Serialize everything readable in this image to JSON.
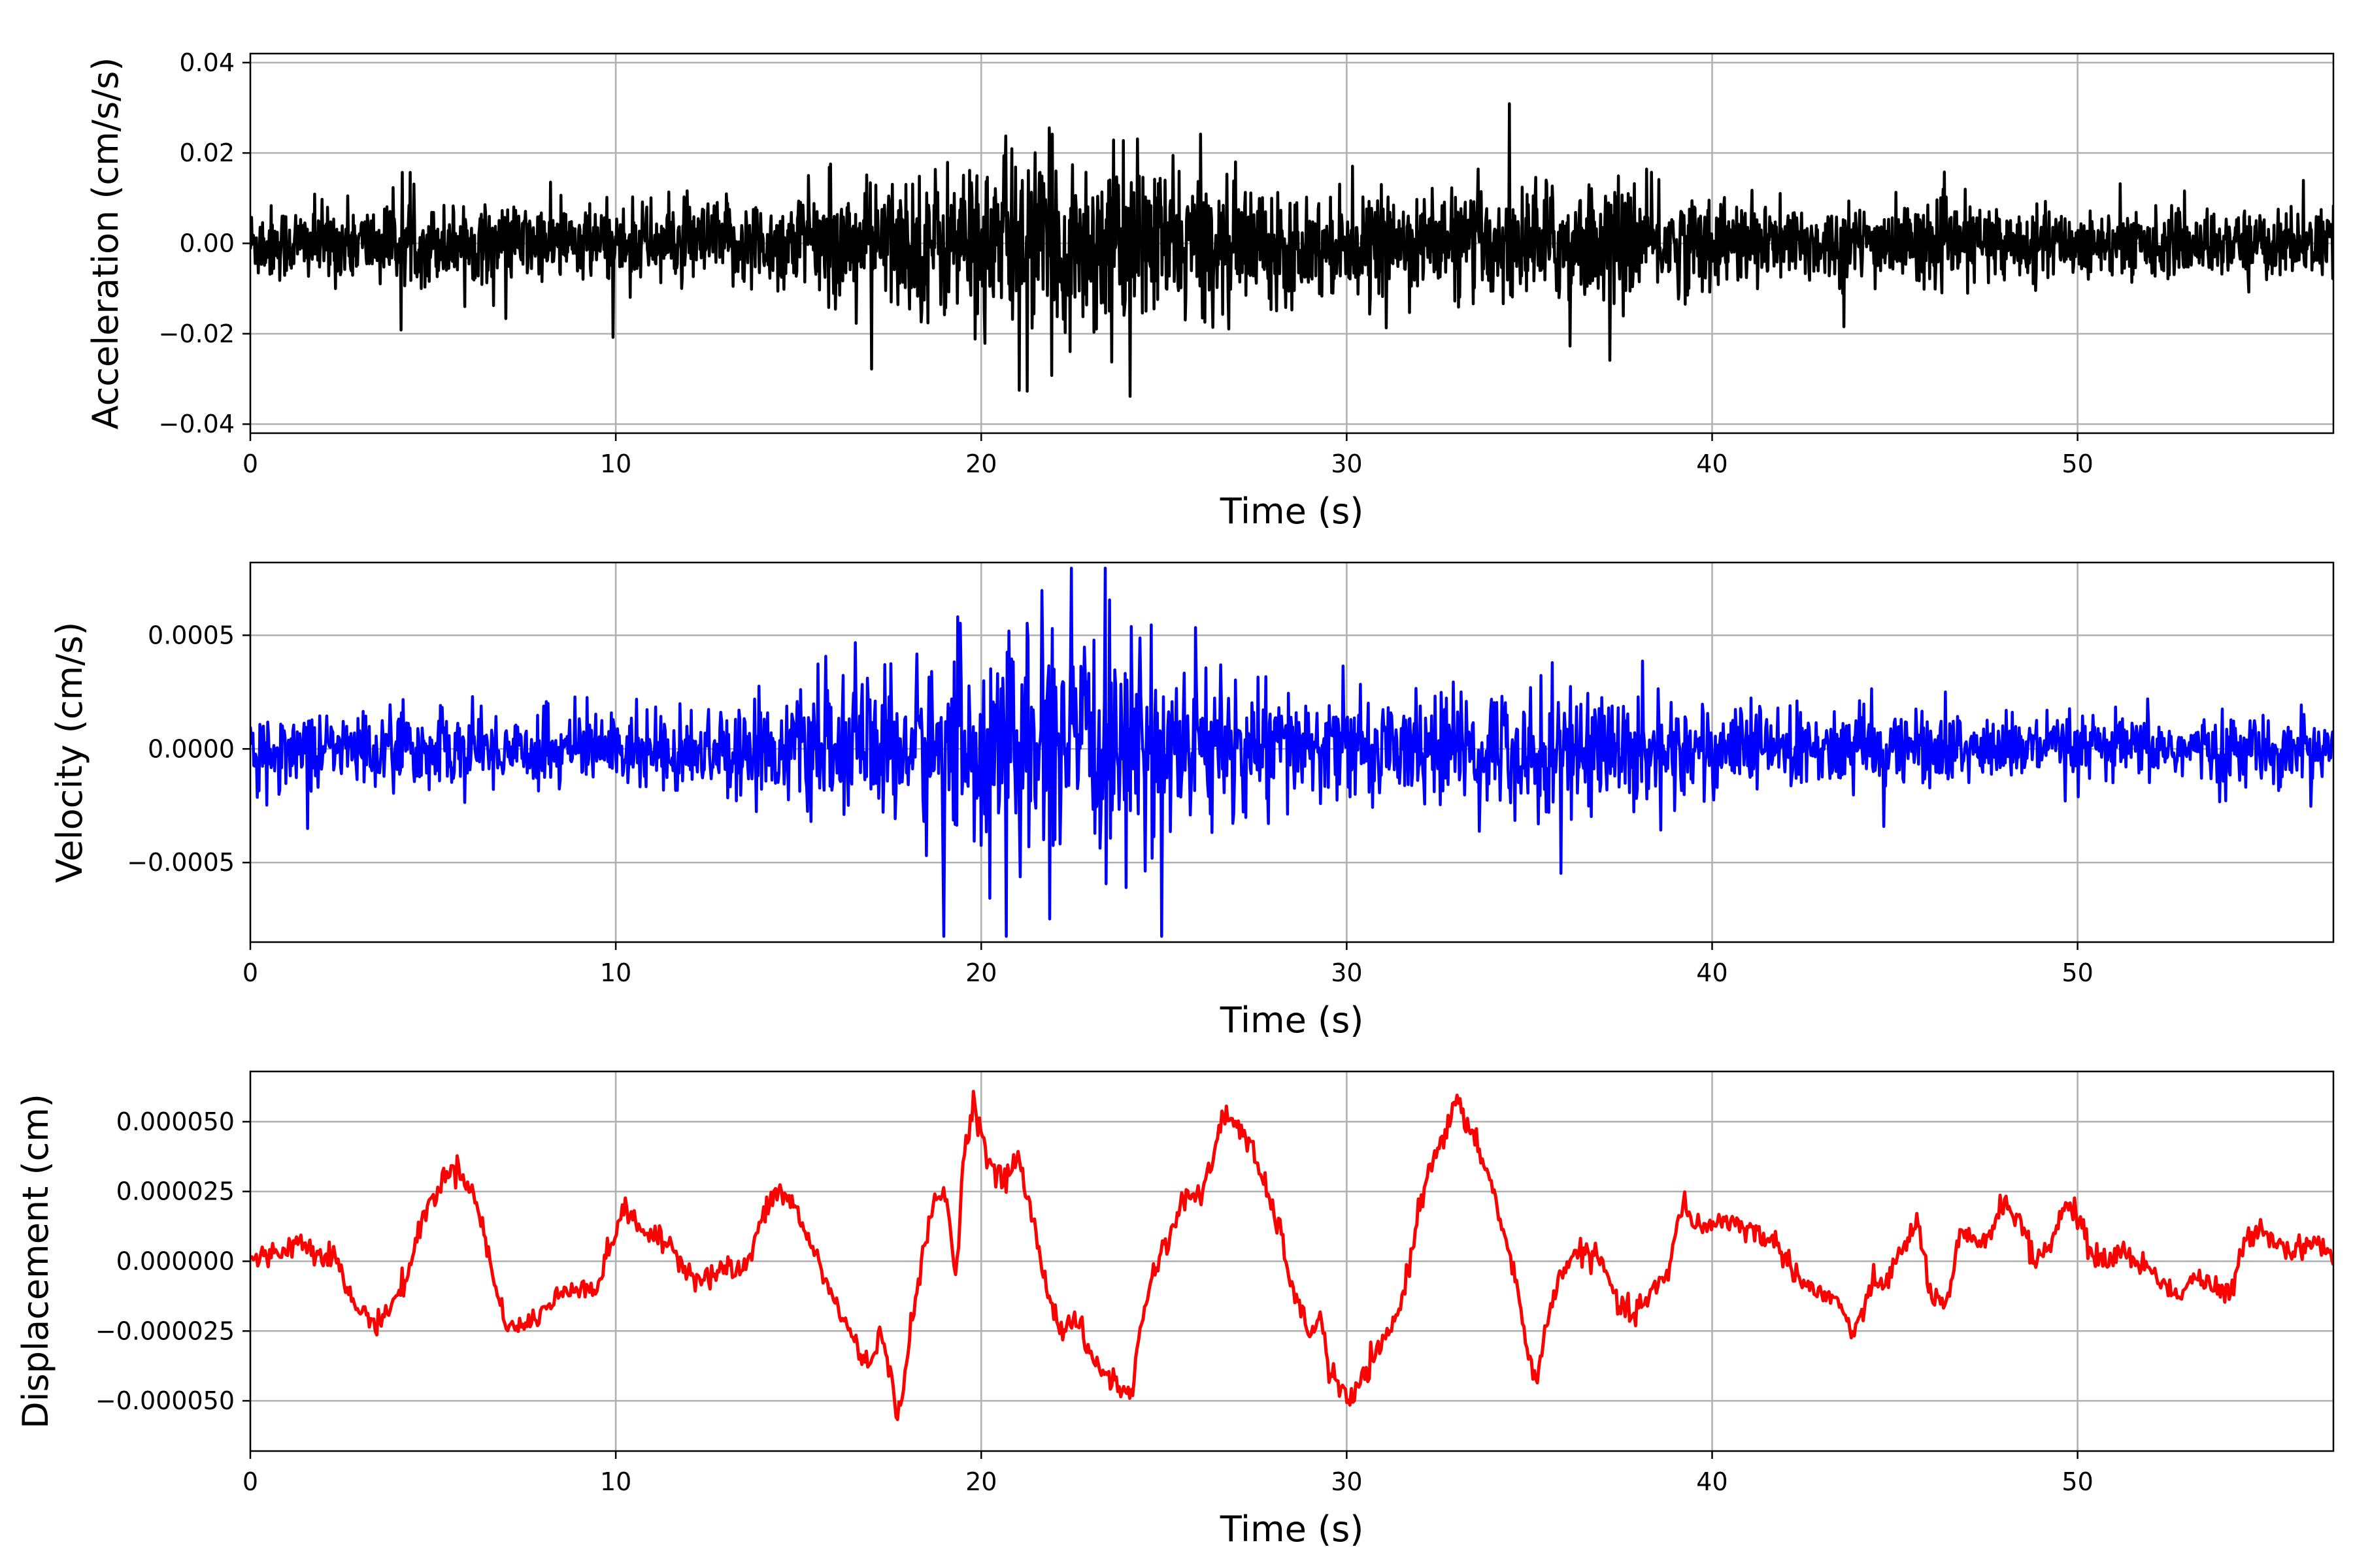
{
  "chart_data": [
    {
      "type": "line",
      "xlabel": "Time (s)",
      "ylabel": "Acceleration (cm/s/s)",
      "xlim": [
        0,
        57
      ],
      "ylim": [
        -0.042,
        0.042
      ],
      "xticks": [
        0,
        10,
        20,
        30,
        40,
        50
      ],
      "xtick_labels": [
        "0",
        "10",
        "20",
        "30",
        "40",
        "50"
      ],
      "yticks": [
        -0.04,
        -0.02,
        0.0,
        0.02,
        0.04
      ],
      "ytick_labels": [
        "−0.04",
        "−0.02",
        "0.00",
        "0.02",
        "0.04"
      ],
      "grid": true,
      "color": "#000000",
      "series": [
        {
          "x": [
            0,
            57
          ],
          "y": [
            0,
            0
          ]
        }
      ]
    },
    {
      "type": "line",
      "xlabel": "Time (s)",
      "ylabel": "Velocity (cm/s)",
      "xlim": [
        0,
        57
      ],
      "ylim": [
        -0.00085,
        0.00082
      ],
      "xticks": [
        0,
        10,
        20,
        30,
        40,
        50
      ],
      "xtick_labels": [
        "0",
        "10",
        "20",
        "30",
        "40",
        "50"
      ],
      "yticks": [
        -0.0005,
        0.0,
        0.0005
      ],
      "ytick_labels": [
        "−0.0005",
        "0.0000",
        "0.0005"
      ],
      "grid": true,
      "color": "#0000ff",
      "series": [
        {
          "x": [
            0,
            57
          ],
          "y": [
            0,
            0
          ]
        }
      ]
    },
    {
      "type": "line",
      "xlabel": "Time (s)",
      "ylabel": "Displacement (cm)",
      "xlim": [
        0,
        57
      ],
      "ylim": [
        -6.8e-05,
        6.8e-05
      ],
      "xticks": [
        0,
        10,
        20,
        30,
        40,
        50
      ],
      "xtick_labels": [
        "0",
        "10",
        "20",
        "30",
        "40",
        "50"
      ],
      "yticks": [
        -5e-05,
        -2.5e-05,
        0.0,
        2.5e-05,
        5e-05
      ],
      "ytick_labels": [
        "−0.000050",
        "−0.000025",
        "0.000000",
        "0.000025",
        "0.000050"
      ],
      "grid": true,
      "color": "#ff0000",
      "series": [
        {
          "x": [
            0,
            0.5,
            1,
            1.3,
            1.8,
            2.3,
            2.8,
            3.2,
            3.5,
            3.9,
            4.3,
            4.7,
            5.2,
            5.6,
            6.0,
            6.4,
            6.8,
            7.1,
            7.4,
            8.0,
            8.5,
            9.0,
            9.5,
            9.9,
            10.2,
            10.5,
            11.0,
            11.5,
            12.0,
            12.5,
            13.0,
            13.3,
            13.6,
            14.0,
            14.4,
            14.8,
            15.2,
            15.6,
            16.0,
            16.4,
            16.9,
            17.2,
            17.5,
            17.7,
            17.9,
            18.3,
            18.7,
            19.0,
            19.3,
            19.5,
            19.8,
            20.2,
            20.6,
            21.0,
            21.4,
            21.8,
            22.2,
            22.6,
            23.0,
            23.4,
            23.8,
            24.1,
            24.4,
            24.8,
            25.2,
            25.6,
            26.0,
            26.3,
            26.6,
            27.0,
            27.4,
            27.8,
            28.2,
            28.6,
            29.0,
            29.3,
            29.5,
            29.8,
            30.1,
            30.5,
            31.0,
            31.5,
            32.0,
            32.4,
            32.7,
            33.0,
            33.4,
            33.8,
            34.2,
            34.6,
            34.9,
            35.2,
            35.6,
            36.0,
            36.5,
            37.0,
            37.4,
            37.8,
            38.3,
            38.8,
            39.2,
            39.4,
            39.8,
            40.3,
            40.8,
            41.2,
            41.6,
            42.0,
            42.5,
            43.0,
            43.5,
            43.9,
            44.3,
            44.8,
            45.2,
            45.6,
            46.0,
            46.4,
            46.8,
            47.2,
            47.6,
            48.0,
            48.4,
            48.8,
            49.2,
            49.6,
            49.9,
            50.3,
            50.8,
            51.2,
            51.7,
            52.2,
            52.7,
            53.2,
            53.7,
            54.2,
            54.6,
            55.0,
            55.5,
            56.0,
            56.5,
            57.0
          ],
          "y": [
            0,
            2e-06,
            5e-06,
            7e-06,
            4e-06,
            2e-06,
            -1.5e-05,
            -2e-05,
            -2.2e-05,
            -1.5e-05,
            -5e-06,
            1.5e-05,
            2.8e-05,
            3.4e-05,
            2.8e-05,
            1e-05,
            -1.5e-05,
            -2.3e-05,
            -2.4e-05,
            -1.8e-05,
            -1.2e-05,
            -8e-06,
            -1e-05,
            8e-06,
            1.8e-05,
            1.5e-05,
            8e-06,
            6e-06,
            -4e-06,
            -6e-06,
            -2e-06,
            -4e-06,
            -1e-06,
            1.5e-05,
            2.5e-05,
            2.2e-05,
            1e-05,
            -2e-06,
            -1.5e-05,
            -2.5e-05,
            -3.8e-05,
            -2.5e-05,
            -4e-05,
            -5.6e-05,
            -4e-05,
            -5e-06,
            2e-05,
            2.6e-05,
            -5e-06,
            3.5e-05,
            5.8e-05,
            3.5e-05,
            2.8e-05,
            3.8e-05,
            1.5e-05,
            -1e-05,
            -2.5e-05,
            -2e-05,
            -3.5e-05,
            -4e-05,
            -4.5e-05,
            -4.9e-05,
            -2e-05,
            0,
            1e-05,
            2.5e-05,
            2.2e-05,
            3.5e-05,
            5.2e-05,
            5e-05,
            4e-05,
            2.5e-05,
            1e-05,
            -1.5e-05,
            -2.5e-05,
            -2e-05,
            -3.8e-05,
            -4.5e-05,
            -5.1e-05,
            -4e-05,
            -3e-05,
            -1.5e-05,
            2e-05,
            4e-05,
            4.5e-05,
            5.8e-05,
            4.5e-05,
            3.5e-05,
            1.5e-05,
            -5e-06,
            -3e-05,
            -4.2e-05,
            -1.5e-05,
            0,
            4e-06,
            -1e-06,
            -1.5e-05,
            -2e-05,
            -1.2e-05,
            -5e-06,
            2.3e-05,
            1.5e-05,
            1.2e-05,
            1.5e-05,
            1.3e-05,
            1e-05,
            8e-06,
            2e-06,
            -8e-06,
            -1.2e-05,
            -1.5e-05,
            -2.8e-05,
            -1e-05,
            -6e-06,
            3e-06,
            1.5e-05,
            -1.2e-05,
            -1.8e-05,
            1e-05,
            6e-06,
            1e-05,
            2.2e-05,
            1.5e-05,
            0,
            5e-06,
            1.8e-05,
            2e-05,
            4e-06,
            0,
            4e-06,
            -1e-06,
            -5e-06,
            -1.3e-05,
            -5e-06,
            -1e-05,
            -1.2e-05,
            8e-06,
            1.3e-05,
            6e-06,
            4e-06,
            8e-06,
            0
          ]
        }
      ]
    }
  ]
}
